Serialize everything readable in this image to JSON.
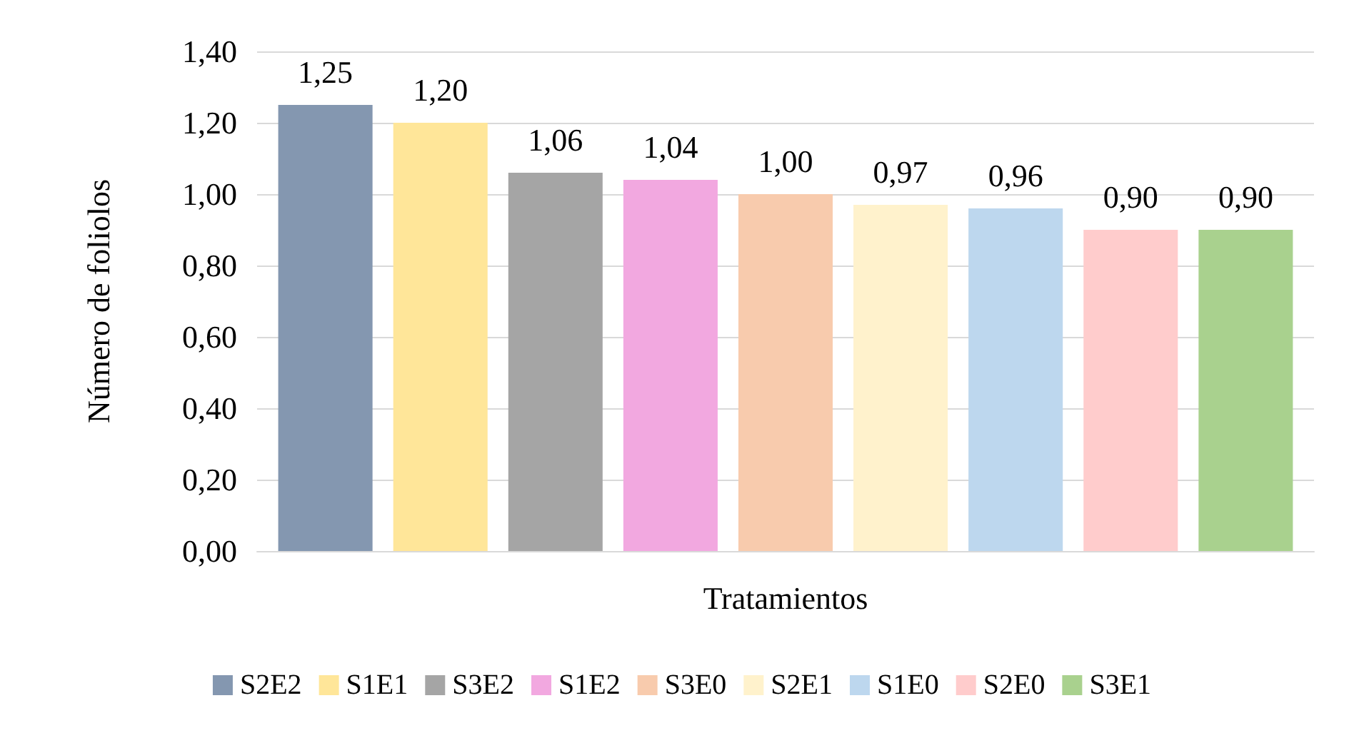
{
  "chart_data": {
    "type": "bar",
    "xlabel": "Tratamientos",
    "ylabel": "Número de foliolos",
    "categories": [
      null
    ],
    "series": [
      {
        "name": "S2E2",
        "color": "#8497b0",
        "values": [
          1.25
        ],
        "value_labels": [
          "1,25"
        ]
      },
      {
        "name": "S1E1",
        "color": "#ffe699",
        "values": [
          1.2
        ],
        "value_labels": [
          "1,20"
        ]
      },
      {
        "name": "S3E2",
        "color": "#a5a5a5",
        "values": [
          1.06
        ],
        "value_labels": [
          "1,06"
        ]
      },
      {
        "name": "S1E2",
        "color": "#f2a8e0",
        "values": [
          1.04
        ],
        "value_labels": [
          "1,04"
        ]
      },
      {
        "name": "S3E0",
        "color": "#f8cbad",
        "values": [
          1.0
        ],
        "value_labels": [
          "1,00"
        ]
      },
      {
        "name": "S2E1",
        "color": "#fff2cc",
        "values": [
          0.97
        ],
        "value_labels": [
          "0,97"
        ]
      },
      {
        "name": "S1E0",
        "color": "#bdd7ee",
        "values": [
          0.96
        ],
        "value_labels": [
          "0,96"
        ]
      },
      {
        "name": "S2E0",
        "color": "#ffcccc",
        "values": [
          0.9
        ],
        "value_labels": [
          "0,90"
        ]
      },
      {
        "name": "S3E1",
        "color": "#a9d18e",
        "values": [
          0.9
        ],
        "value_labels": [
          "0,90"
        ]
      }
    ],
    "ylim": [
      0,
      1.4
    ],
    "yticks": [
      {
        "value": 0,
        "label": "0,00"
      },
      {
        "value": 0.2,
        "label": "0,20"
      },
      {
        "value": 0.4,
        "label": "0,40"
      },
      {
        "value": 0.6,
        "label": "0,60"
      },
      {
        "value": 0.8,
        "label": "0,80"
      },
      {
        "value": 1.0,
        "label": "1,00"
      },
      {
        "value": 1.2,
        "label": "1,20"
      },
      {
        "value": 1.4,
        "label": "1,40"
      }
    ],
    "grid": "y",
    "legend": "bottom"
  }
}
